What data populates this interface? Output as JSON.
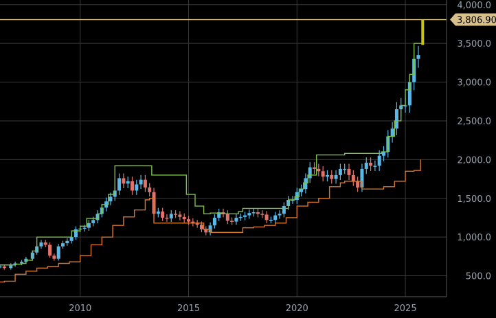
{
  "chart_data": {
    "type": "line",
    "title": "",
    "xlabel": "",
    "ylabel": "",
    "xlim": [
      2006.3,
      2026.9
    ],
    "ylim": [
      230,
      4060
    ],
    "x_ticks": [
      2010,
      2015,
      2020,
      2025
    ],
    "x_tick_labels": [
      "2010",
      "2015",
      "2020",
      "2025"
    ],
    "y_ticks": [
      500,
      1000,
      1500,
      2000,
      2500,
      3000,
      3500,
      4000
    ],
    "y_tick_labels": [
      "500.0",
      "1,000.0",
      "1,500.0",
      "2,000.0",
      "2,500.0",
      "3,000.0",
      "3,500.0",
      "4,000.0"
    ],
    "grid": true,
    "last_price": {
      "value": 3806.9,
      "label": "3,806.90",
      "color": "#d8c08a"
    },
    "colors": {
      "up": "#5ab8e6",
      "down": "#e0736a",
      "upper_channel": "#7cc24a",
      "lower_channel": "#d9752a",
      "latest_bar": "#c8c21c"
    },
    "series": [
      {
        "values_kind": "price",
        "x": [
          2006.3,
          2006.5,
          2006.8,
          2007.0,
          2007.3,
          2007.5,
          2007.8,
          2008.0,
          2008.2,
          2008.4,
          2008.6,
          2008.8,
          2009.0,
          2009.2,
          2009.4,
          2009.6,
          2009.8,
          2010.0,
          2010.2,
          2010.4,
          2010.6,
          2010.8,
          2011.0,
          2011.2,
          2011.4,
          2011.6,
          2011.8,
          2012.0,
          2012.2,
          2012.4,
          2012.6,
          2012.8,
          2013.0,
          2013.2,
          2013.4,
          2013.6,
          2013.8,
          2014.0,
          2014.2,
          2014.4,
          2014.6,
          2014.8,
          2015.0,
          2015.2,
          2015.4,
          2015.6,
          2015.8,
          2016.0,
          2016.2,
          2016.4,
          2016.6,
          2016.8,
          2017.0,
          2017.2,
          2017.4,
          2017.6,
          2017.8,
          2018.0,
          2018.2,
          2018.4,
          2018.6,
          2018.8,
          2019.0,
          2019.2,
          2019.4,
          2019.6,
          2019.8,
          2020.0,
          2020.2,
          2020.4,
          2020.6,
          2020.8,
          2021.0,
          2021.2,
          2021.4,
          2021.6,
          2021.8,
          2022.0,
          2022.2,
          2022.4,
          2022.6,
          2022.8,
          2023.0,
          2023.2,
          2023.4,
          2023.6,
          2023.8,
          2024.0,
          2024.2,
          2024.4,
          2024.6,
          2024.8,
          2025.0,
          2025.2,
          2025.4,
          2025.6,
          2025.8
        ],
        "values": [
          620,
          600,
          640,
          660,
          680,
          720,
          800,
          880,
          930,
          900,
          760,
          720,
          880,
          920,
          950,
          1000,
          1100,
          1110,
          1120,
          1180,
          1220,
          1300,
          1380,
          1460,
          1520,
          1600,
          1760,
          1690,
          1720,
          1600,
          1680,
          1740,
          1640,
          1580,
          1300,
          1330,
          1250,
          1240,
          1300,
          1290,
          1260,
          1230,
          1200,
          1180,
          1160,
          1100,
          1060,
          1150,
          1250,
          1320,
          1300,
          1210,
          1200,
          1250,
          1260,
          1280,
          1310,
          1320,
          1300,
          1290,
          1220,
          1220,
          1280,
          1300,
          1400,
          1480,
          1480,
          1580,
          1620,
          1760,
          1900,
          1880,
          1850,
          1780,
          1800,
          1750,
          1800,
          1880,
          1880,
          1800,
          1720,
          1640,
          1880,
          1960,
          1920,
          1920,
          2050,
          2100,
          2300,
          2400,
          2650,
          2700,
          2700,
          3000,
          3300,
          3350,
          3806.9
        ]
      },
      {
        "values_kind": "upper_channel",
        "x": [
          2006.3,
          2007.0,
          2007.3,
          2007.5,
          2007.8,
          2008.0,
          2009.5,
          2009.6,
          2010.0,
          2010.3,
          2010.8,
          2011.0,
          2011.3,
          2011.6,
          2013.2,
          2013.3,
          2014.5,
          2014.9,
          2015.3,
          2015.7,
          2016.0,
          2016.5,
          2017.3,
          2017.5,
          2018.0,
          2018.5,
          2019.0,
          2019.3,
          2019.6,
          2019.9,
          2020.1,
          2020.3,
          2020.5,
          2020.9,
          2022.0,
          2022.2,
          2023.7,
          2023.9,
          2024.2,
          2024.5,
          2024.8,
          2025.0,
          2025.2,
          2025.4,
          2025.6,
          2025.8
        ],
        "values": [
          640,
          650,
          660,
          700,
          820,
          1000,
          1000,
          1080,
          1140,
          1240,
          1300,
          1420,
          1550,
          1920,
          1920,
          1800,
          1800,
          1550,
          1400,
          1300,
          1310,
          1300,
          1330,
          1370,
          1370,
          1370,
          1370,
          1370,
          1480,
          1520,
          1620,
          1700,
          1800,
          2060,
          2060,
          2080,
          2080,
          2100,
          2300,
          2500,
          2700,
          2900,
          3100,
          3500,
          3500,
          3806.9
        ]
      },
      {
        "values_kind": "lower_channel",
        "x": [
          2006.3,
          2006.5,
          2007.0,
          2007.5,
          2008.0,
          2008.5,
          2009.0,
          2009.5,
          2010.0,
          2010.5,
          2011.0,
          2011.5,
          2012.0,
          2012.5,
          2013.0,
          2013.2,
          2013.4,
          2015.5,
          2015.7,
          2016.0,
          2016.5,
          2017.5,
          2018.0,
          2018.5,
          2019.0,
          2019.5,
          2020.0,
          2020.5,
          2021.0,
          2021.5,
          2022.0,
          2022.2,
          2022.8,
          2023.0,
          2023.5,
          2024.0,
          2024.5,
          2025.0,
          2025.4,
          2025.7
        ],
        "values": [
          420,
          430,
          520,
          560,
          600,
          620,
          660,
          680,
          760,
          900,
          1000,
          1150,
          1260,
          1350,
          1480,
          1500,
          1180,
          1180,
          1100,
          1060,
          1060,
          1120,
          1130,
          1150,
          1180,
          1250,
          1400,
          1450,
          1500,
          1650,
          1700,
          1720,
          1720,
          1620,
          1620,
          1650,
          1720,
          1850,
          1860,
          2000
        ]
      }
    ]
  }
}
